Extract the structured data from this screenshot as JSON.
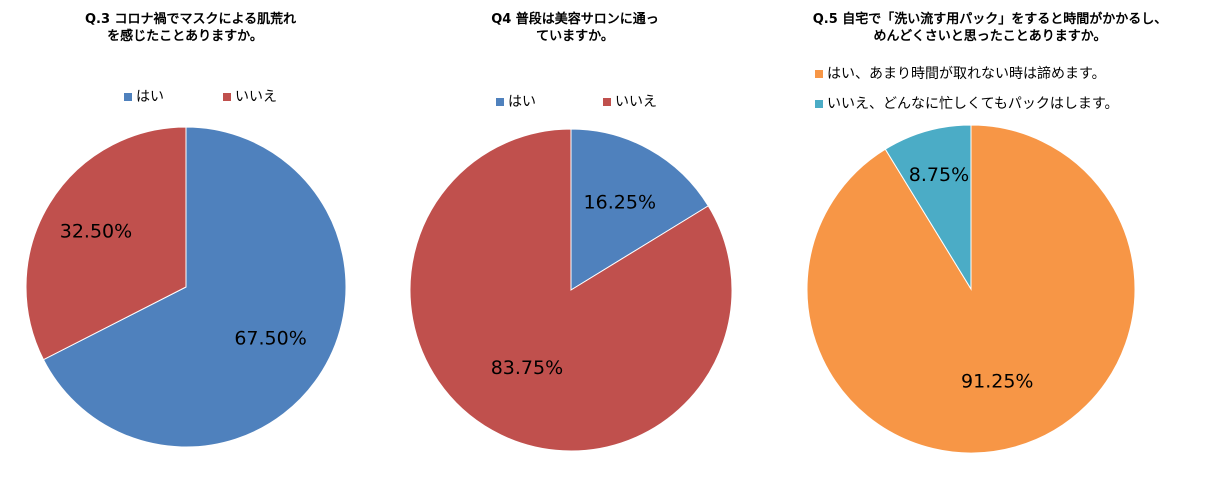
{
  "chart_data": [
    {
      "type": "pie",
      "title_lines": [
        "Q.3 コロナ禍でマスクによる肌荒れ",
        "を感じたことありますか。"
      ],
      "legend": [
        "はい",
        "いいえ"
      ],
      "slices": [
        {
          "label": "はい",
          "value": 67.5,
          "display": "67.50%",
          "color": "#4F81BD"
        },
        {
          "label": "いいえ",
          "value": 32.5,
          "display": "32.50%",
          "color": "#C0504D"
        }
      ]
    },
    {
      "type": "pie",
      "title_lines": [
        "Q4 普段は美容サロンに通っ",
        "ていますか。"
      ],
      "legend": [
        "はい",
        "いいえ"
      ],
      "slices": [
        {
          "label": "はい",
          "value": 16.25,
          "display": "16.25%",
          "color": "#4F81BD"
        },
        {
          "label": "いいえ",
          "value": 83.75,
          "display": "83.75%",
          "color": "#C0504D"
        }
      ]
    },
    {
      "type": "pie",
      "title_lines": [
        "Q.5 自宅で「洗い流す用パック」をすると時間がかかるし、",
        "めんどくさいと思ったことありますか。"
      ],
      "legend": [
        "はい、あまり時間が取れない時は諦めます。",
        "いいえ、どんなに忙しくてもパックはします。"
      ],
      "slices": [
        {
          "label": "はい、あまり時間が取れない時は諦めます。",
          "value": 91.25,
          "display": "91.25%",
          "color": "#F79646"
        },
        {
          "label": "いいえ、どんなに忙しくてもパックはします。",
          "value": 8.75,
          "display": "8.75%",
          "color": "#4BACC6"
        }
      ]
    }
  ]
}
